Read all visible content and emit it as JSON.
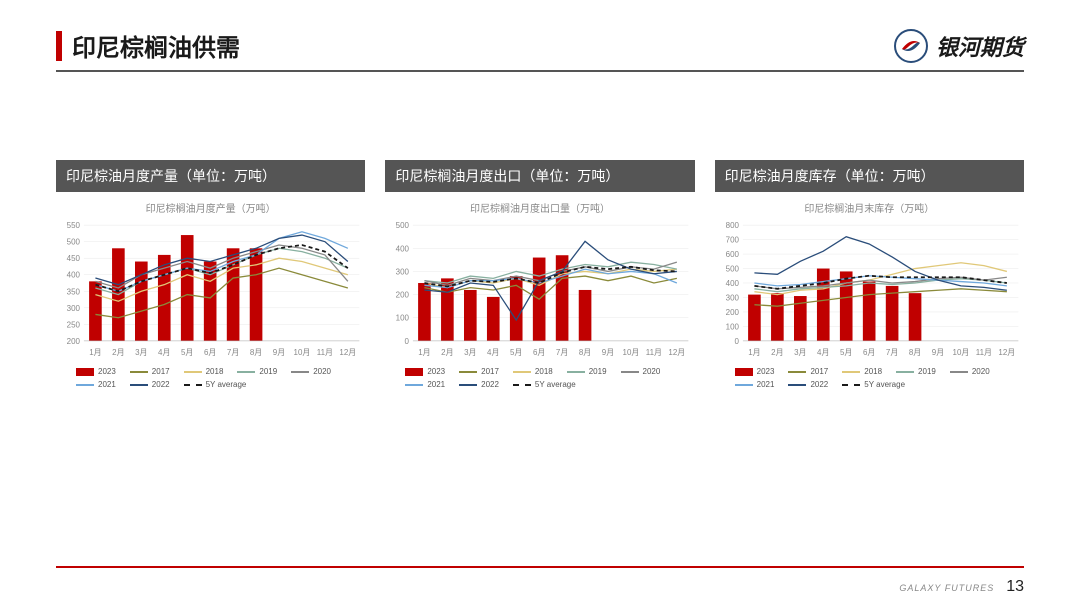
{
  "page": {
    "title": "印尼棕榈油供需",
    "brand": "银河期货",
    "footer_brand": "GALAXY FUTURES",
    "page_number": "13"
  },
  "colors": {
    "accent": "#c00000",
    "header_bar": "#555555",
    "y2017": "#8a8a3a",
    "y2018": "#e0c878",
    "y2019": "#88b0a0",
    "y2020": "#888888",
    "y2021": "#6fa8dc",
    "y2022": "#2a4d7a",
    "avg": "#1a1a1a",
    "bar2023": "#c00000",
    "grid": "#e8e8e8",
    "text_muted": "#888888"
  },
  "months": [
    "1月",
    "2月",
    "3月",
    "4月",
    "5月",
    "6月",
    "7月",
    "8月",
    "9月",
    "10月",
    "11月",
    "12月"
  ],
  "legend": [
    {
      "key": "2023",
      "label": "2023",
      "type": "bar",
      "color": "#c00000"
    },
    {
      "key": "2017",
      "label": "2017",
      "type": "line",
      "color": "#8a8a3a"
    },
    {
      "key": "2018",
      "label": "2018",
      "type": "line",
      "color": "#e0c878"
    },
    {
      "key": "2019",
      "label": "2019",
      "type": "line",
      "color": "#88b0a0"
    },
    {
      "key": "2020",
      "label": "2020",
      "type": "line",
      "color": "#888888"
    },
    {
      "key": "2021",
      "label": "2021",
      "type": "line",
      "color": "#6fa8dc"
    },
    {
      "key": "2022",
      "label": "2022",
      "type": "line",
      "color": "#2a4d7a"
    },
    {
      "key": "avg",
      "label": "5Y average",
      "type": "dash",
      "color": "#1a1a1a"
    }
  ],
  "charts": [
    {
      "panel_title": "印尼棕油月度产量（单位：万吨）",
      "subtitle": "印尼棕榈油月度产量（万吨）",
      "type": "bar+lines",
      "ylim": [
        200,
        550
      ],
      "ytick_step": 50,
      "series": {
        "2023": [
          380,
          480,
          440,
          460,
          520,
          440,
          480,
          480,
          null,
          null,
          null,
          null
        ],
        "2017": [
          280,
          270,
          290,
          310,
          340,
          330,
          390,
          400,
          420,
          400,
          380,
          360
        ],
        "2018": [
          340,
          320,
          350,
          370,
          400,
          380,
          420,
          430,
          450,
          440,
          420,
          400
        ],
        "2019": [
          360,
          340,
          380,
          400,
          420,
          400,
          430,
          460,
          480,
          470,
          450,
          420
        ],
        "2020": [
          380,
          360,
          400,
          420,
          440,
          420,
          450,
          470,
          490,
          480,
          460,
          380
        ],
        "2021": [
          370,
          350,
          380,
          400,
          420,
          410,
          440,
          460,
          510,
          530,
          510,
          480
        ],
        "2022": [
          390,
          370,
          400,
          430,
          450,
          440,
          460,
          480,
          510,
          520,
          500,
          440
        ],
        "avg": [
          370,
          350,
          380,
          400,
          420,
          405,
          430,
          460,
          480,
          490,
          470,
          420
        ]
      }
    },
    {
      "panel_title": "印尼棕榈油月度出口（单位：万吨）",
      "subtitle": "印尼棕榈油月度出口量（万吨）",
      "type": "bar+lines",
      "ylim": [
        0,
        500
      ],
      "ytick_step": 100,
      "series": {
        "2023": [
          250,
          270,
          220,
          190,
          280,
          360,
          370,
          220,
          null,
          null,
          null,
          null
        ],
        "2017": [
          230,
          210,
          230,
          220,
          240,
          180,
          270,
          280,
          260,
          280,
          250,
          270
        ],
        "2018": [
          250,
          230,
          260,
          250,
          270,
          240,
          290,
          300,
          290,
          310,
          300,
          310
        ],
        "2019": [
          260,
          250,
          280,
          270,
          300,
          280,
          310,
          330,
          320,
          340,
          330,
          310
        ],
        "2020": [
          260,
          240,
          270,
          260,
          280,
          260,
          300,
          320,
          300,
          320,
          310,
          340
        ],
        "2021": [
          240,
          230,
          260,
          260,
          270,
          250,
          280,
          310,
          290,
          300,
          290,
          250
        ],
        "2022": [
          220,
          210,
          250,
          240,
          90,
          260,
          300,
          430,
          350,
          310,
          290,
          300
        ],
        "avg": [
          250,
          235,
          260,
          255,
          270,
          250,
          295,
          320,
          310,
          320,
          305,
          300
        ]
      }
    },
    {
      "panel_title": "印尼棕油月度库存（单位：万吨）",
      "subtitle": "印尼棕榈油月末库存（万吨）",
      "type": "bar+lines",
      "ylim": [
        0,
        800
      ],
      "ytick_step": 100,
      "series": {
        "2023": [
          320,
          330,
          310,
          500,
          480,
          410,
          380,
          330,
          null,
          null,
          null,
          null
        ],
        "2017": [
          250,
          240,
          260,
          280,
          300,
          320,
          330,
          340,
          350,
          360,
          350,
          340
        ],
        "2018": [
          340,
          320,
          350,
          360,
          400,
          420,
          460,
          500,
          520,
          540,
          520,
          480
        ],
        "2019": [
          360,
          340,
          360,
          370,
          380,
          400,
          390,
          400,
          420,
          430,
          420,
          400
        ],
        "2020": [
          380,
          360,
          370,
          380,
          400,
          420,
          400,
          410,
          430,
          440,
          420,
          440
        ],
        "2021": [
          400,
          380,
          390,
          410,
          430,
          450,
          440,
          430,
          420,
          410,
          400,
          380
        ],
        "2022": [
          470,
          460,
          550,
          620,
          720,
          670,
          580,
          480,
          420,
          380,
          370,
          350
        ],
        "avg": [
          380,
          360,
          380,
          400,
          430,
          450,
          440,
          440,
          440,
          440,
          420,
          400
        ]
      }
    }
  ]
}
